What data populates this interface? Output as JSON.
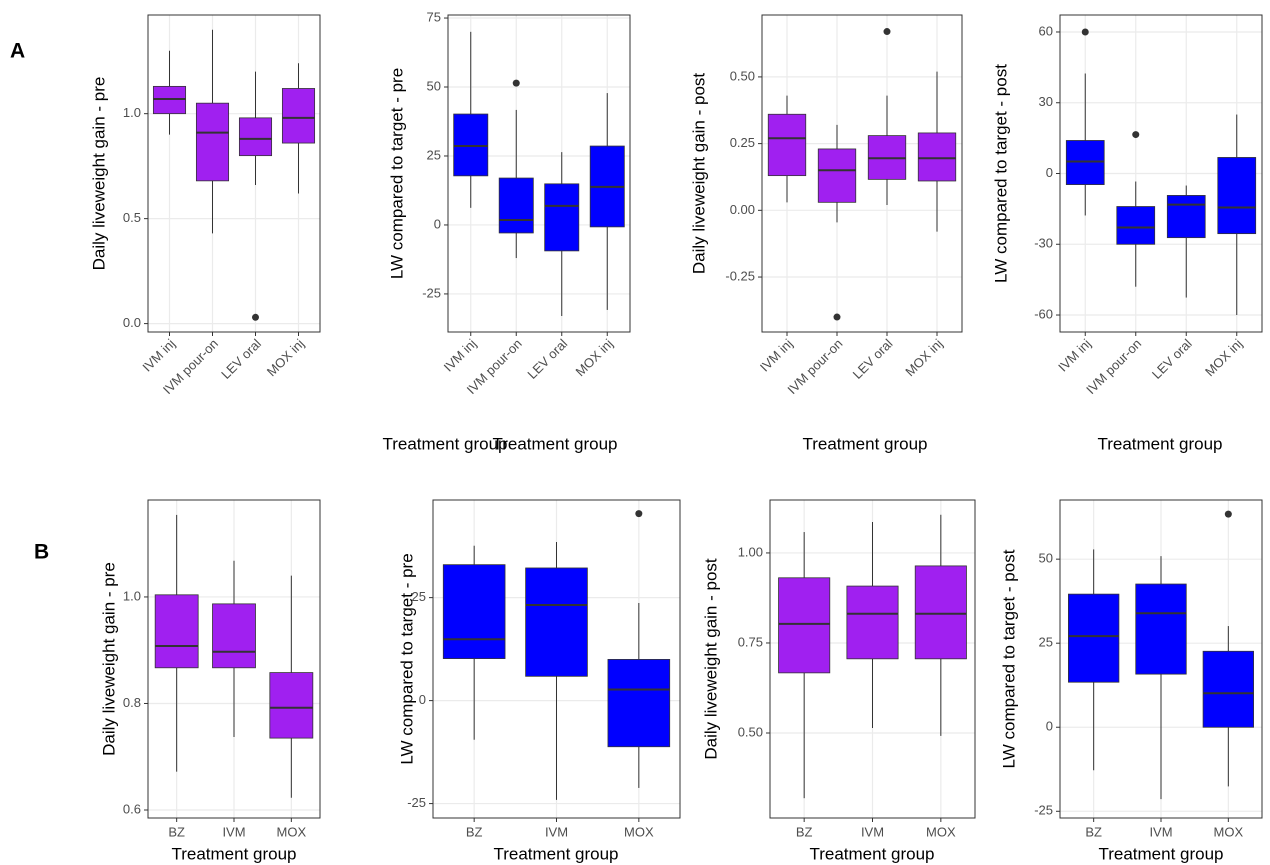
{
  "panel_labels": [
    "A",
    "B"
  ],
  "chart_data": [
    {
      "type": "box",
      "ylabel": "Daily liveweight gain - pre",
      "xlabel": "Treatment group",
      "categories": [
        "IVM inj",
        "IVM pour-on",
        "LEV oral",
        "MOX inj"
      ],
      "color": "#a020f0",
      "xtick_rotation": 45,
      "grid": true,
      "ylim": [
        -0.04,
        1.47
      ],
      "yticks": [
        {
          "value": 0,
          "label": "0.0"
        },
        0.5,
        {
          "value": 1,
          "label": "1.0"
        }
      ],
      "boxes": [
        {
          "min": 0.9,
          "q1": 1.0,
          "median": 1.07,
          "q3": 1.13,
          "max": 1.3,
          "outliers": []
        },
        {
          "min": 0.43,
          "q1": 0.68,
          "median": 0.91,
          "q3": 1.05,
          "max": 1.4,
          "outliers": []
        },
        {
          "min": 0.66,
          "q1": 0.8,
          "median": 0.88,
          "q3": 0.98,
          "max": 1.2,
          "outliers": [
            0.03
          ]
        },
        {
          "min": 0.62,
          "q1": 0.86,
          "median": 0.98,
          "q3": 1.12,
          "max": 1.24,
          "outliers": []
        }
      ]
    },
    {
      "type": "box",
      "ylabel": "LW compared to target - pre",
      "xlabel": "Treatment group",
      "categories": [
        "IVM inj",
        "IVM pour-on",
        "LEV oral",
        "MOX inj"
      ],
      "color": "#0000ff",
      "xtick_rotation": 45,
      "grid": true,
      "ylim": [
        -38.8,
        76.1
      ],
      "yticks": [
        -25,
        0,
        25,
        50,
        75
      ],
      "boxes": [
        {
          "min": 6.2,
          "q1": 17.8,
          "median": 28.6,
          "q3": 40.2,
          "max": 70,
          "outliers": []
        },
        {
          "min": -12,
          "q1": -2.9,
          "median": 1.8,
          "q3": 17,
          "max": 41.7,
          "outliers": [
            51.4
          ]
        },
        {
          "min": -33,
          "q1": -9.4,
          "median": 6.9,
          "q3": 14.9,
          "max": 26.4,
          "outliers": []
        },
        {
          "min": -30.8,
          "q1": -0.7,
          "median": 13.8,
          "q3": 28.6,
          "max": 47.8,
          "outliers": []
        }
      ]
    },
    {
      "type": "box",
      "ylabel": "Daily liveweight gain - post",
      "xlabel": "Treatment group",
      "categories": [
        "IVM inj",
        "IVM pour-on",
        "LEV oral",
        "MOX inj"
      ],
      "color": "#a020f0",
      "xtick_rotation": 45,
      "grid": true,
      "ylim": [
        -0.456,
        0.732
      ],
      "yticks": [
        {
          "value": -0.25,
          "label": "-0.25"
        },
        {
          "value": 0,
          "label": "0.00"
        },
        0.25,
        {
          "value": 0.5,
          "label": "0.50"
        }
      ],
      "boxes": [
        {
          "min": 0.03,
          "q1": 0.13,
          "median": 0.27,
          "q3": 0.36,
          "max": 0.43,
          "outliers": []
        },
        {
          "min": -0.045,
          "q1": 0.03,
          "median": 0.15,
          "q3": 0.23,
          "max": 0.32,
          "outliers": [
            -0.4
          ]
        },
        {
          "min": 0.02,
          "q1": 0.116,
          "median": 0.195,
          "q3": 0.28,
          "max": 0.43,
          "outliers": [
            0.67
          ]
        },
        {
          "min": -0.08,
          "q1": 0.11,
          "median": 0.195,
          "q3": 0.29,
          "max": 0.52,
          "outliers": []
        }
      ]
    },
    {
      "type": "box",
      "ylabel": "LW compared to target - post",
      "xlabel": "Treatment group",
      "categories": [
        "IVM inj",
        "IVM pour-on",
        "LEV oral",
        "MOX inj"
      ],
      "color": "#0000ff",
      "xtick_rotation": 45,
      "grid": true,
      "ylim": [
        -67.2,
        67.2
      ],
      "yticks": [
        -60,
        -30,
        0,
        30,
        60
      ],
      "boxes": [
        {
          "min": -17.8,
          "q1": -4.7,
          "median": 5.1,
          "q3": 14,
          "max": 42.4,
          "outliers": [
            60
          ]
        },
        {
          "min": -48,
          "q1": -30,
          "median": -22.9,
          "q3": -14,
          "max": -3.4,
          "outliers": [
            16.5
          ]
        },
        {
          "min": -52.6,
          "q1": -27.2,
          "median": -13.2,
          "q3": -9.3,
          "max": -5.1,
          "outliers": []
        },
        {
          "min": -60,
          "q1": -25.5,
          "median": -14.4,
          "q3": 6.8,
          "max": 25,
          "outliers": []
        }
      ]
    },
    {
      "type": "box",
      "ylabel": "Daily liveweight gain - pre",
      "xlabel": "Treatment group",
      "categories": [
        "BZ",
        "IVM",
        "MOX"
      ],
      "color": "#a020f0",
      "xtick_rotation": 0,
      "grid": true,
      "ylim": [
        0.585,
        1.182
      ],
      "yticks": [
        0.6,
        0.8,
        {
          "value": 1,
          "label": "1.0"
        }
      ],
      "boxes": [
        {
          "min": 0.672,
          "q1": 0.867,
          "median": 0.908,
          "q3": 1.004,
          "max": 1.154,
          "outliers": []
        },
        {
          "min": 0.737,
          "q1": 0.867,
          "median": 0.897,
          "q3": 0.987,
          "max": 1.068,
          "outliers": []
        },
        {
          "min": 0.623,
          "q1": 0.735,
          "median": 0.792,
          "q3": 0.858,
          "max": 1.04,
          "outliers": []
        }
      ]
    },
    {
      "type": "box",
      "ylabel": "LW compared to target - pre",
      "xlabel": "Treatment group",
      "categories": [
        "BZ",
        "IVM",
        "MOX"
      ],
      "color": "#0000ff",
      "xtick_rotation": 0,
      "grid": true,
      "ylim": [
        -28.5,
        48.7
      ],
      "yticks": [
        -25,
        0,
        25
      ],
      "boxes": [
        {
          "min": -9.5,
          "q1": 10.2,
          "median": 14.9,
          "q3": 33,
          "max": 37.6,
          "outliers": []
        },
        {
          "min": -24.1,
          "q1": 5.9,
          "median": 23.2,
          "q3": 32.2,
          "max": 38.5,
          "outliers": []
        },
        {
          "min": -21.2,
          "q1": -11.2,
          "median": 2.7,
          "q3": 10,
          "max": 23.7,
          "outliers": [
            45.4
          ]
        }
      ]
    },
    {
      "type": "box",
      "ylabel": "Daily liveweight gain - post",
      "xlabel": "Treatment group",
      "categories": [
        "BZ",
        "IVM",
        "MOX"
      ],
      "color": "#a020f0",
      "xtick_rotation": 0,
      "grid": true,
      "ylim": [
        0.264,
        1.147
      ],
      "yticks": [
        {
          "value": 0.5,
          "label": "0.50"
        },
        0.75,
        {
          "value": 1,
          "label": "1.00"
        }
      ],
      "boxes": [
        {
          "min": 0.319,
          "q1": 0.667,
          "median": 0.803,
          "q3": 0.931,
          "max": 1.058,
          "outliers": []
        },
        {
          "min": 0.514,
          "q1": 0.706,
          "median": 0.831,
          "q3": 0.908,
          "max": 1.086,
          "outliers": []
        },
        {
          "min": 0.492,
          "q1": 0.706,
          "median": 0.831,
          "q3": 0.964,
          "max": 1.106,
          "outliers": []
        }
      ]
    },
    {
      "type": "box",
      "ylabel": "LW compared to target - post",
      "xlabel": "Treatment group",
      "categories": [
        "BZ",
        "IVM",
        "MOX"
      ],
      "color": "#0000ff",
      "xtick_rotation": 0,
      "grid": true,
      "ylim": [
        -27,
        67.6
      ],
      "yticks": [
        -25,
        0,
        25,
        50
      ],
      "boxes": [
        {
          "min": -12.8,
          "q1": 13.4,
          "median": 27.1,
          "q3": 39.6,
          "max": 52.9,
          "outliers": []
        },
        {
          "min": -21.4,
          "q1": 15.8,
          "median": 33.9,
          "q3": 42.6,
          "max": 50.9,
          "outliers": []
        },
        {
          "min": -17.6,
          "q1": 0,
          "median": 10.1,
          "q3": 22.6,
          "max": 30.1,
          "outliers": [
            63.4
          ]
        }
      ]
    }
  ]
}
